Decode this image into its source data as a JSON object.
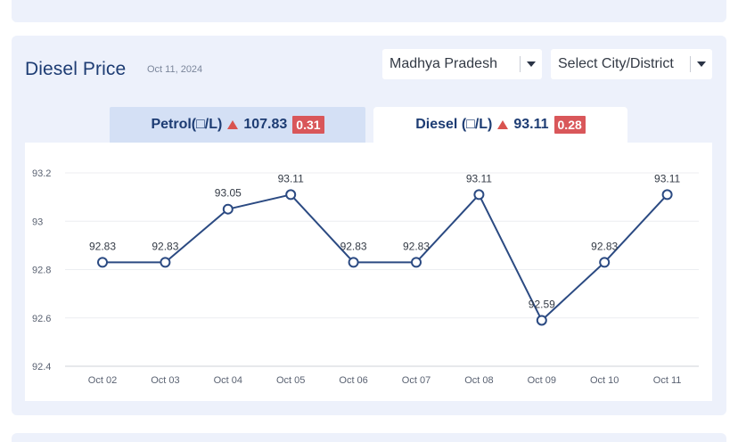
{
  "header": {
    "title": "Diesel Price",
    "date": "Oct 11, 2024"
  },
  "filters": {
    "state": "Madhya Pradesh",
    "city_placeholder": "Select City/District"
  },
  "tabs": [
    {
      "label": "Petrol(□/L)",
      "price": "107.83",
      "change": "0.31",
      "active": false
    },
    {
      "label": "Diesel (□/L)",
      "price": "93.11",
      "change": "0.28",
      "active": true
    }
  ],
  "colors": {
    "line": "#2b4a82",
    "badge": "#d9575a",
    "up_arrow": "#d9534f"
  },
  "chart_data": {
    "type": "line",
    "categories": [
      "Oct 02",
      "Oct 03",
      "Oct 04",
      "Oct 05",
      "Oct 06",
      "Oct 07",
      "Oct 08",
      "Oct 09",
      "Oct 10",
      "Oct 11"
    ],
    "values": [
      92.83,
      92.83,
      93.05,
      93.11,
      92.83,
      92.83,
      93.11,
      92.59,
      92.83,
      93.11
    ],
    "data_labels": [
      "92.83",
      "92.83",
      "93.05",
      "93.11",
      "92.83",
      "92.83",
      "93.11",
      "92.59",
      "92.83",
      "93.11"
    ],
    "yticks": [
      {
        "value": 92.4,
        "label": "92.4"
      },
      {
        "value": 92.6,
        "label": "92.6"
      },
      {
        "value": 92.8,
        "label": "92.8"
      },
      {
        "value": 93,
        "label": "93"
      },
      {
        "value": 93.2,
        "label": "93.2"
      }
    ],
    "ylim": [
      92.4,
      93.2
    ],
    "grid": true,
    "legend": "none"
  }
}
